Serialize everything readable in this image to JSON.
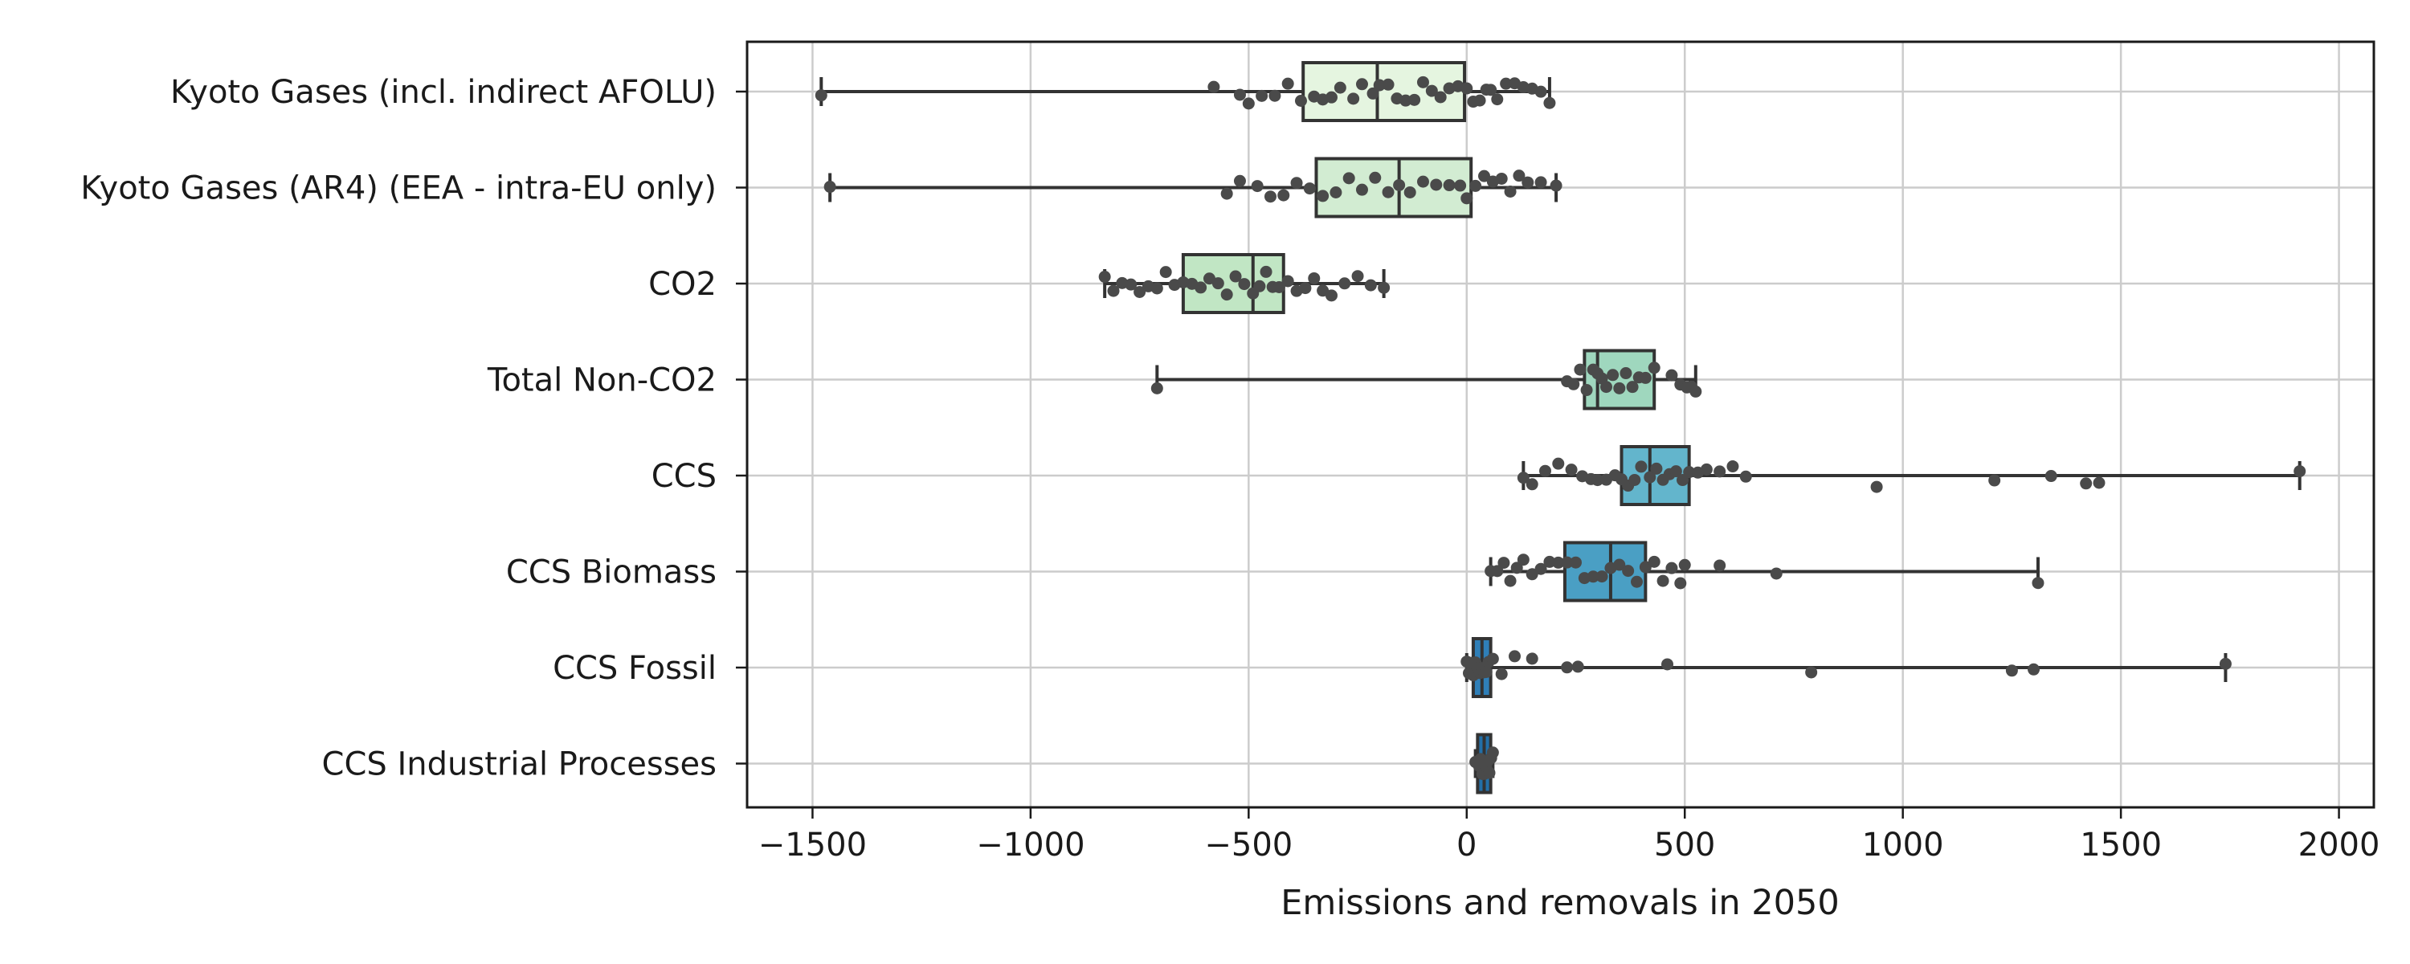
{
  "chart_data": {
    "type": "box",
    "orientation": "horizontal",
    "xlabel": "Emissions and removals in 2050",
    "ylabel": "",
    "xlim": [
      -1650,
      2080
    ],
    "xticks": [
      -1500,
      -1000,
      -500,
      0,
      500,
      1000,
      1500,
      2000
    ],
    "xtick_labels": [
      "−1500",
      "−1000",
      "−500",
      "0",
      "500",
      "1000",
      "1500",
      "2000"
    ],
    "grid": true,
    "legend": "none",
    "categories": [
      "Kyoto Gases (incl. indirect AFOLU)",
      "Kyoto Gases (AR4) (EEA - intra-EU only)",
      "CO2",
      "Total Non-CO2",
      "CCS",
      "CCS Biomass",
      "CCS Fossil",
      "CCS Industrial Processes"
    ],
    "boxes": [
      {
        "category": "Kyoto Gases (incl. indirect AFOLU)",
        "whisker_low": -1480,
        "q1": -375,
        "median": -205,
        "q3": -5,
        "whisker_high": 190,
        "color": "#e5f5e0",
        "points": [
          -1480,
          -580,
          -520,
          -500,
          -470,
          -440,
          -410,
          -380,
          -350,
          -330,
          -310,
          -290,
          -260,
          -240,
          -215,
          -200,
          -180,
          -160,
          -140,
          -120,
          -100,
          -80,
          -60,
          -40,
          -20,
          0,
          15,
          30,
          45,
          55,
          70,
          90,
          110,
          130,
          150,
          170,
          190
        ]
      },
      {
        "category": "Kyoto Gases (AR4) (EEA - intra-EU only)",
        "whisker_low": -1460,
        "q1": -345,
        "median": -155,
        "q3": 10,
        "whisker_high": 205,
        "color": "#d2ecd2",
        "points": [
          -1460,
          -550,
          -520,
          -480,
          -450,
          -420,
          -390,
          -360,
          -330,
          -300,
          -270,
          -240,
          -210,
          -180,
          -155,
          -130,
          -100,
          -70,
          -40,
          -15,
          0,
          20,
          40,
          60,
          80,
          100,
          120,
          140,
          170,
          205
        ]
      },
      {
        "category": "CO2",
        "whisker_low": -830,
        "q1": -650,
        "median": -490,
        "q3": -420,
        "whisker_high": -190,
        "color": "#c1e6c4",
        "points": [
          -830,
          -810,
          -790,
          -770,
          -750,
          -730,
          -710,
          -690,
          -670,
          -650,
          -630,
          -610,
          -590,
          -570,
          -550,
          -530,
          -510,
          -490,
          -475,
          -460,
          -445,
          -430,
          -410,
          -390,
          -370,
          -350,
          -330,
          -310,
          -280,
          -250,
          -220,
          -190
        ]
      },
      {
        "category": "Total Non-CO2",
        "whisker_low": -710,
        "q1": 270,
        "median": 300,
        "q3": 430,
        "whisker_high": 525,
        "color": "#9fd7be",
        "points": [
          -710,
          230,
          245,
          260,
          275,
          290,
          300,
          310,
          320,
          335,
          350,
          365,
          380,
          395,
          410,
          430,
          470,
          490,
          505,
          515,
          525
        ]
      },
      {
        "category": "CCS",
        "whisker_low": 130,
        "q1": 355,
        "median": 420,
        "q3": 510,
        "whisker_high": 1910,
        "color": "#63b5cc",
        "points": [
          130,
          150,
          180,
          210,
          240,
          265,
          285,
          300,
          320,
          340,
          355,
          370,
          385,
          400,
          420,
          435,
          450,
          465,
          480,
          495,
          510,
          530,
          550,
          580,
          610,
          640,
          940,
          1210,
          1340,
          1420,
          1450,
          1910
        ]
      },
      {
        "category": "CCS Biomass",
        "whisker_low": 55,
        "q1": 225,
        "median": 330,
        "q3": 410,
        "whisker_high": 1310,
        "color": "#4a9fc4",
        "points": [
          55,
          70,
          85,
          100,
          115,
          130,
          150,
          170,
          190,
          210,
          230,
          250,
          270,
          290,
          310,
          330,
          350,
          370,
          390,
          410,
          430,
          450,
          470,
          490,
          500,
          580,
          710,
          1310
        ]
      },
      {
        "category": "CCS Fossil",
        "whisker_low": 0,
        "q1": 15,
        "median": 35,
        "q3": 55,
        "whisker_high": 1740,
        "color": "#2f7fb8",
        "points": [
          0,
          5,
          10,
          15,
          20,
          25,
          30,
          35,
          40,
          45,
          50,
          60,
          80,
          110,
          150,
          230,
          255,
          460,
          790,
          1250,
          1300,
          1740
        ]
      },
      {
        "category": "CCS Industrial Processes",
        "whisker_low": 20,
        "q1": 25,
        "median": 40,
        "q3": 55,
        "whisker_high": 60,
        "color": "#226fa8",
        "points": [
          20,
          24,
          28,
          32,
          36,
          40,
          44,
          48,
          52,
          56,
          60
        ]
      }
    ]
  }
}
